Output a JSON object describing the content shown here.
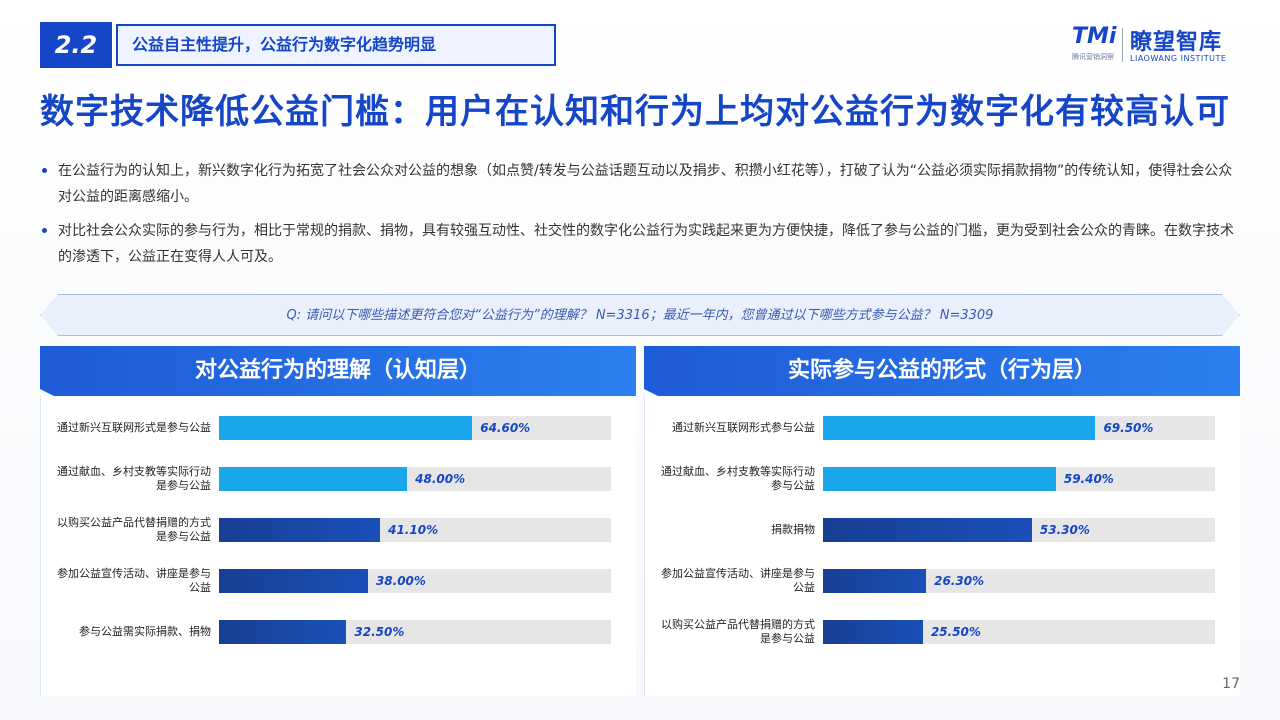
{
  "section": {
    "number": "2.2",
    "label": "公益自主性提升，公益行为数字化趋势明显"
  },
  "logo": {
    "brand": "TMi",
    "brand_sub": "腾讯营销洞察",
    "name": "瞭望智库",
    "en": "LIAOWANG INSTITUTE"
  },
  "title": "数字技术降低公益门槛：用户在认知和行为上均对公益行为数字化有较高认可",
  "bullets": [
    "在公益行为的认知上，新兴数字化行为拓宽了社会公众对公益的想象（如点赞/转发与公益话题互动以及捐步、积攒小红花等），打破了认为“公益必须实际捐款捐物”的传统认知，使得社会公众对公益的距离感缩小。",
    "对比社会公众实际的参与行为，相比于常规的捐款、捐物，具有较强互动性、社交性的数字化公益行为实践起来更为方便快捷，降低了参与公益的门槛，更为受到社会公众的青睐。在数字技术的渗透下，公益正在变得人人可及。"
  ],
  "question": "Q: 请问以下哪些描述更符合您对“公益行为”的理解？ N=3316；最近一年内，您曾通过以下哪些方式参与公益？ N=3309",
  "page_number": "17",
  "colors": {
    "light_bar": "#19a6ea",
    "dark_bar": "#1b4fb8",
    "track": "#e6e6e6",
    "accent": "#1546c7"
  },
  "chart_data": [
    {
      "type": "bar",
      "title": "对公益行为的理解（认知层）",
      "categories": [
        "通过新兴互联网形式是参与公益",
        "通过献血、乡村支教等实际行动是参与公益",
        "以购买公益产品代替捐赠的方式是参与公益",
        "参加公益宣传活动、讲座是参与公益",
        "参与公益需实际捐款、捐物"
      ],
      "values": [
        64.6,
        48.0,
        41.1,
        38.0,
        32.5
      ],
      "value_labels": [
        "64.60%",
        "48.00%",
        "41.10%",
        "38.00%",
        "32.50%"
      ],
      "bar_styles": [
        "light",
        "light",
        "dark",
        "dark",
        "dark"
      ],
      "xlim": [
        0,
        100
      ]
    },
    {
      "type": "bar",
      "title": "实际参与公益的形式（行为层）",
      "categories": [
        "通过新兴互联网形式参与公益",
        "通过献血、乡村支教等实际行动参与公益",
        "捐款捐物",
        "参加公益宣传活动、讲座是参与公益",
        "以购买公益产品代替捐赠的方式是参与公益"
      ],
      "values": [
        69.5,
        59.4,
        53.3,
        26.3,
        25.5
      ],
      "value_labels": [
        "69.50%",
        "59.40%",
        "53.30%",
        "26.30%",
        "25.50%"
      ],
      "bar_styles": [
        "light",
        "light",
        "dark",
        "dark",
        "dark"
      ],
      "xlim": [
        0,
        100
      ]
    }
  ]
}
